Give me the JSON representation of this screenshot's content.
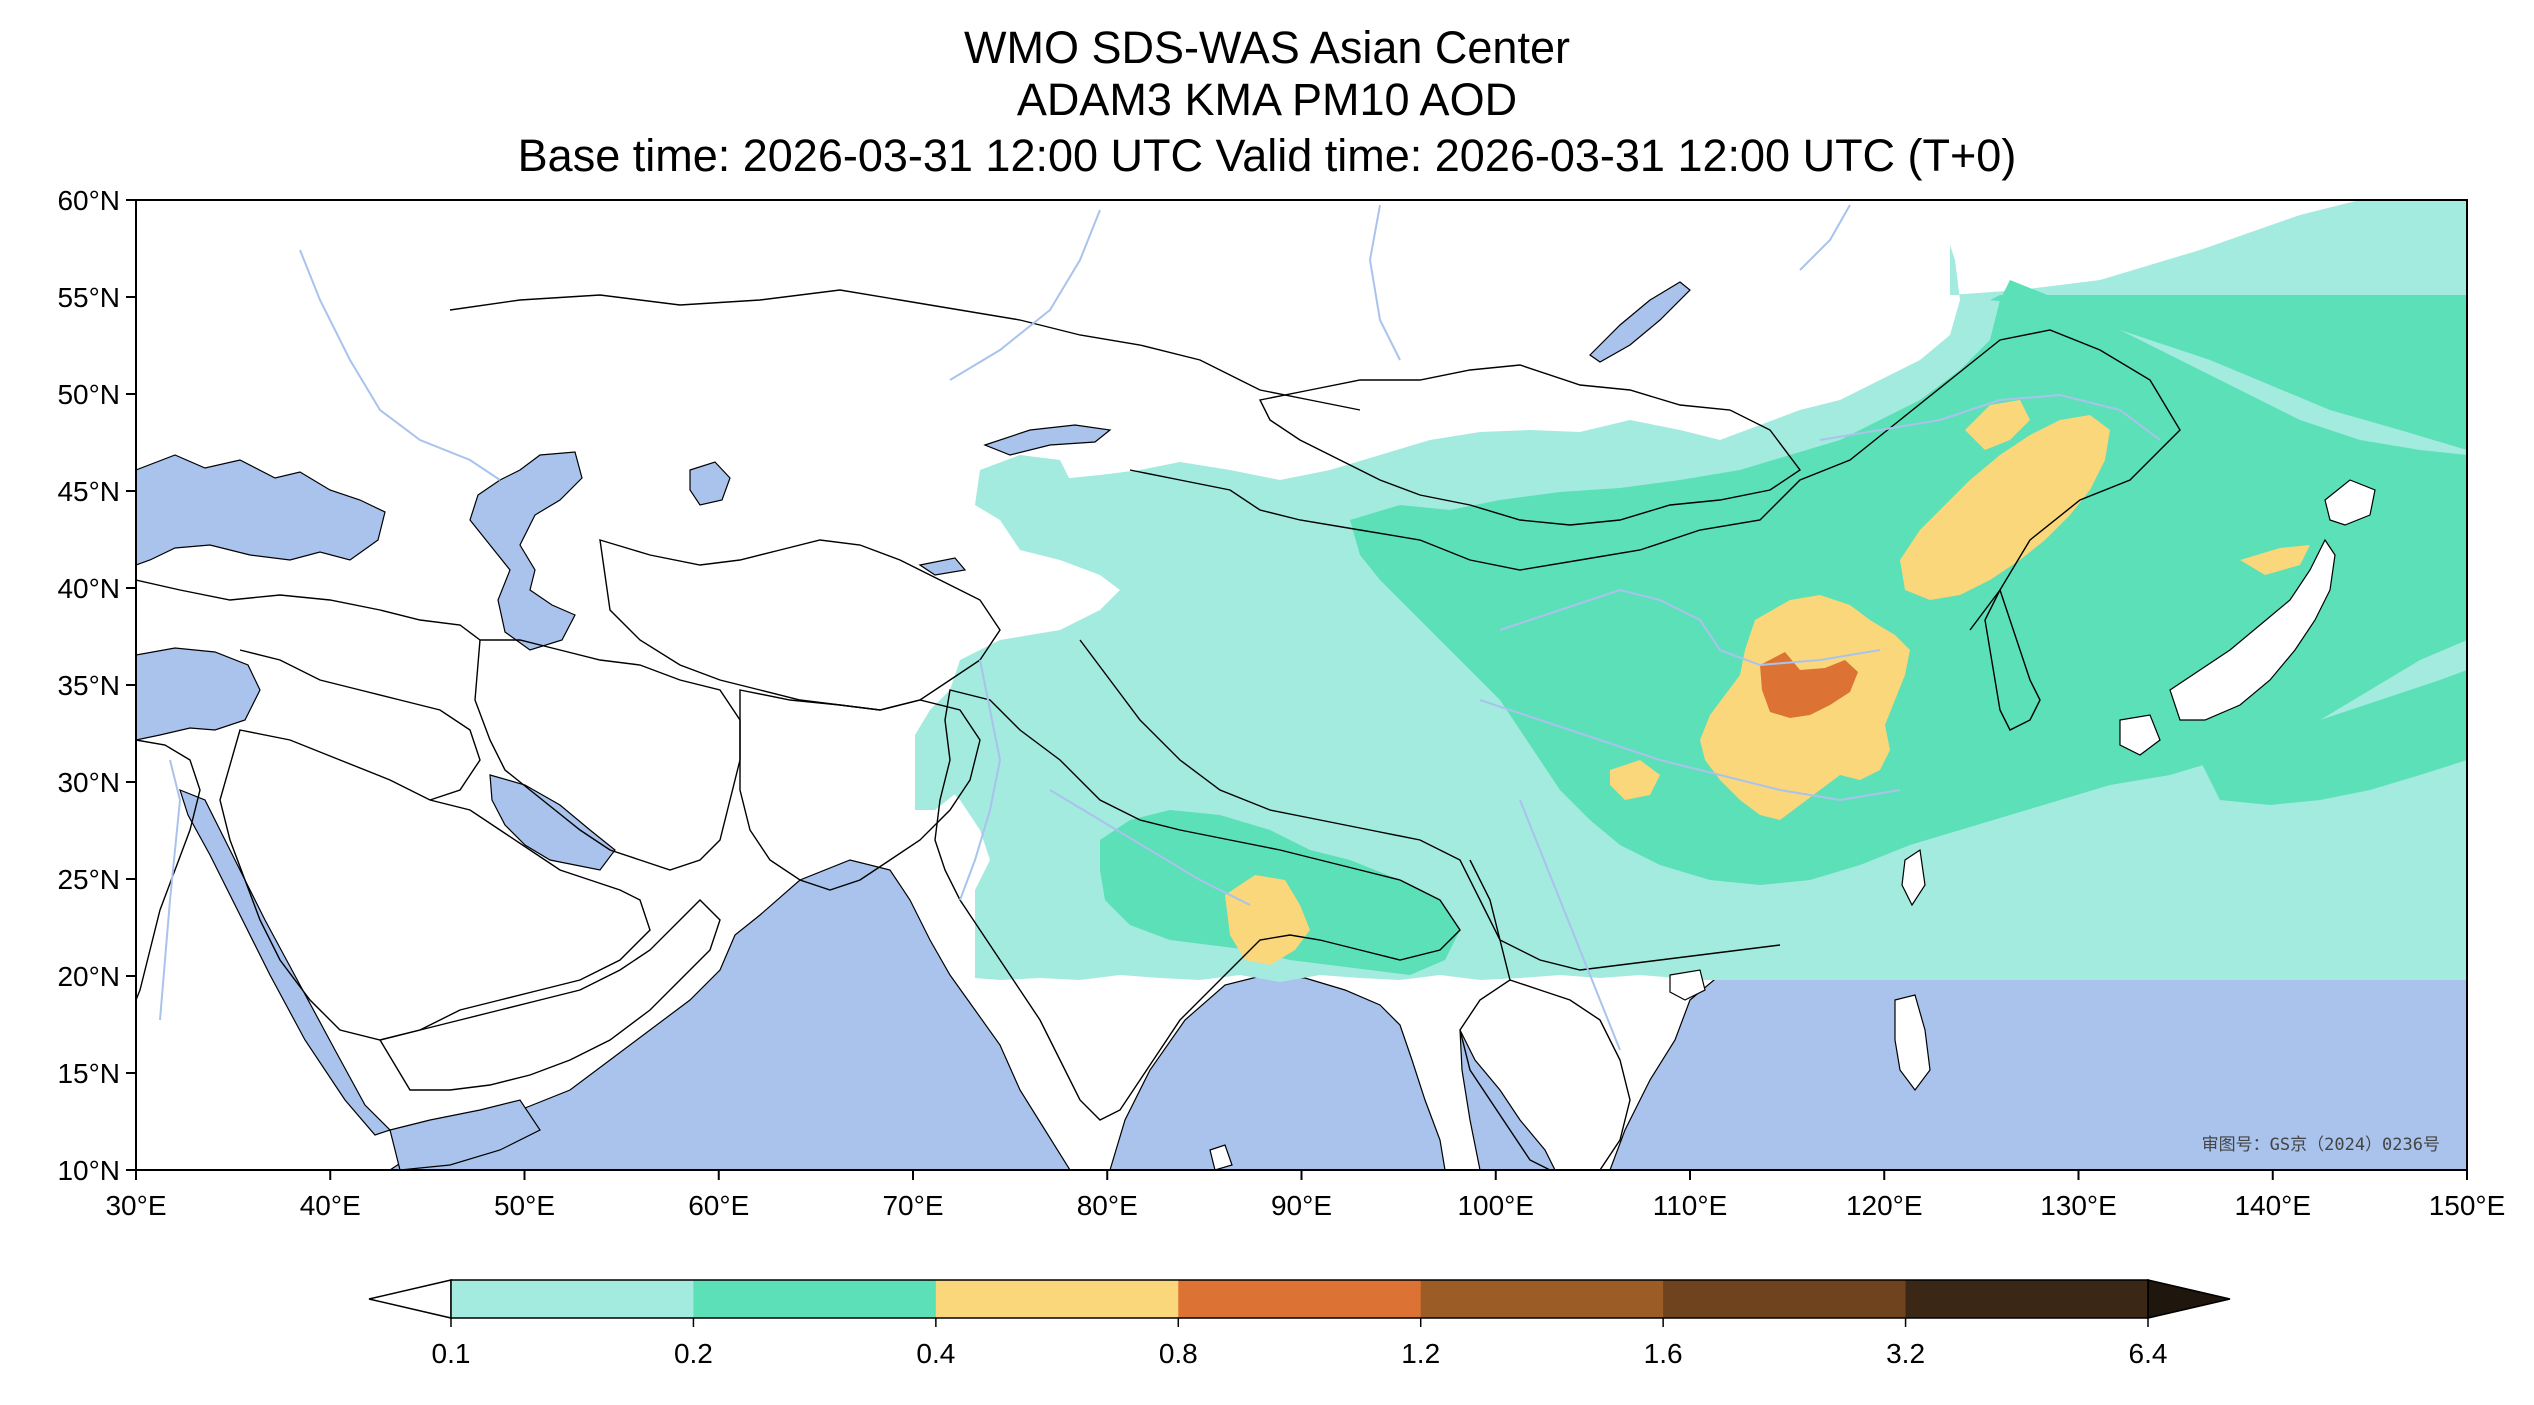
{
  "title": {
    "line1": "WMO SDS-WAS Asian Center",
    "line2": "ADAM3 KMA PM10 AOD",
    "line3": "Base time: 2026-03-31 12:00 UTC Valid time: 2026-03-31 12:00 UTC (T+0)"
  },
  "map": {
    "extent": {
      "lon_min": 30,
      "lon_max": 150,
      "lat_min": 10,
      "lat_max": 60
    },
    "longitude_ticks": [
      "30°E",
      "40°E",
      "50°E",
      "60°E",
      "70°E",
      "80°E",
      "90°E",
      "100°E",
      "110°E",
      "120°E",
      "130°E",
      "140°E",
      "150°E"
    ],
    "latitude_ticks": [
      "60°N",
      "55°N",
      "50°N",
      "45°N",
      "40°N",
      "35°N",
      "30°N",
      "25°N",
      "20°N",
      "15°N",
      "10°N"
    ],
    "approval_number": "审图号：GS京（2024）0236号",
    "colors": {
      "ocean": "#a9c3ec",
      "land": "#ffffff",
      "rivers": "#a9c3ec",
      "borders": "#000000"
    },
    "data_domain": {
      "description": "forecast AOD field",
      "regions": [
        {
          "lon_range": [
            73,
            123
          ],
          "lat_range": [
            20,
            55
          ]
        },
        {
          "lon_range": [
            123,
            150
          ],
          "lat_range": [
            20,
            55
          ]
        }
      ]
    }
  },
  "colorbar": {
    "boundaries": [
      "0.1",
      "0.2",
      "0.4",
      "0.8",
      "1.2",
      "1.6",
      "3.2",
      "6.4"
    ],
    "colors": [
      "#a3eadf",
      "#5be0b7",
      "#fad77b",
      "#dc7233",
      "#9c5c25",
      "#6e431d",
      "#3a2716"
    ],
    "under_color": "#ffffff",
    "over_color": "#1f160d"
  }
}
